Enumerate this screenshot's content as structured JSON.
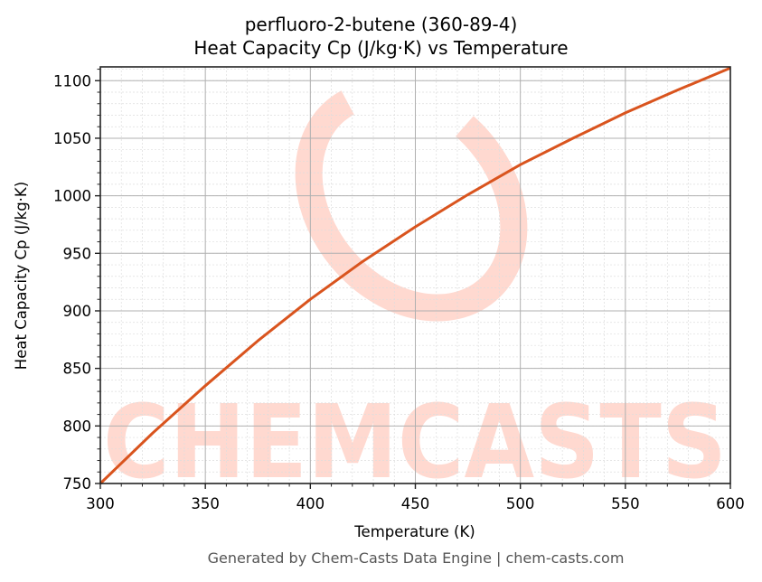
{
  "chart": {
    "title_line1": "perfluoro-2-butene (360-89-4)",
    "title_line2": "Heat Capacity Cp (J/kg·K) vs Temperature",
    "xlabel": "Temperature (K)",
    "ylabel": "Heat Capacity Cp (J/kg·K)",
    "footer": "Generated by Chem-Casts Data Engine | chem-casts.com",
    "watermark": "CHEMCASTS",
    "line_color": "#d9541e",
    "watermark_color": "#ffd9d0"
  },
  "chart_data": {
    "type": "line",
    "title": "perfluoro-2-butene (360-89-4) Heat Capacity Cp (J/kg·K) vs Temperature",
    "xlabel": "Temperature (K)",
    "ylabel": "Heat Capacity Cp (J/kg·K)",
    "xlim": [
      300,
      600
    ],
    "ylim": [
      750,
      1112
    ],
    "x_ticks": [
      300,
      350,
      400,
      450,
      500,
      550,
      600
    ],
    "y_ticks": [
      750,
      800,
      850,
      900,
      950,
      1000,
      1050,
      1100
    ],
    "grid": true,
    "minor_grid": true,
    "legend": null,
    "series": [
      {
        "name": "Cp",
        "color": "#d9541e",
        "x": [
          300,
          325,
          350,
          375,
          400,
          425,
          450,
          475,
          500,
          525,
          550,
          575,
          600
        ],
        "y": [
          750,
          794,
          835,
          874,
          910,
          943,
          973,
          1001,
          1027,
          1050,
          1072,
          1092,
          1111
        ]
      }
    ]
  }
}
